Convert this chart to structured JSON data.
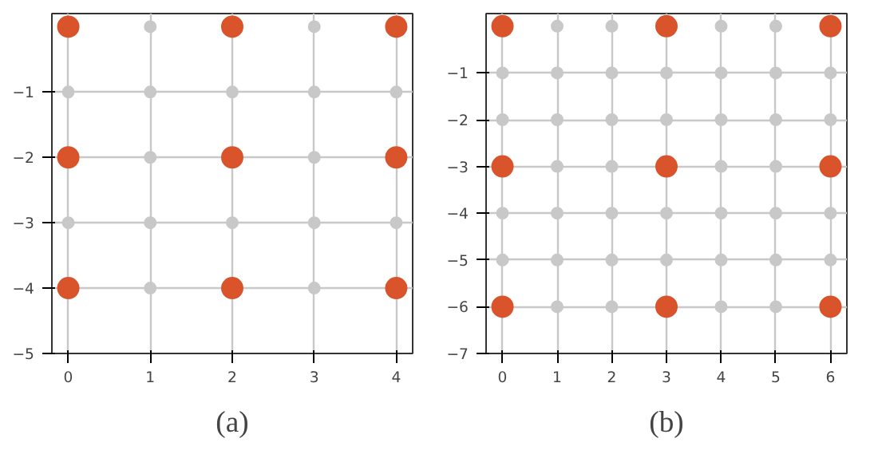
{
  "chart_data": [
    {
      "type": "scatter",
      "annotations": [
        "(a)"
      ],
      "xlim": [
        -0.2,
        4.2
      ],
      "ylim": [
        -5,
        0.2
      ],
      "xticks": [
        0,
        1,
        2,
        3,
        4
      ],
      "yticks": [
        -5,
        -4,
        -3,
        -2,
        -1
      ],
      "grid": true,
      "marker": "circle",
      "series": [
        {
          "color": "#c8c8c8",
          "x": [
            1,
            3,
            0,
            1,
            2,
            3,
            4,
            1,
            3,
            0,
            1,
            2,
            3,
            4,
            1,
            3
          ],
          "values": [
            0,
            0,
            -1,
            -1,
            -1,
            -1,
            -1,
            -2,
            -2,
            -3,
            -3,
            -3,
            -3,
            -3,
            -4,
            -4
          ]
        },
        {
          "color": "#d9532b",
          "x": [
            0,
            2,
            4,
            0,
            2,
            4,
            0,
            2,
            4
          ],
          "values": [
            0,
            0,
            0,
            -2,
            -2,
            -2,
            -4,
            -4,
            -4
          ]
        }
      ]
    },
    {
      "type": "scatter",
      "annotations": [
        "(b)"
      ],
      "xlim": [
        -0.3,
        6.3
      ],
      "ylim": [
        -7,
        0.27
      ],
      "xticks": [
        0,
        1,
        2,
        3,
        4,
        5,
        6
      ],
      "yticks": [
        -7,
        -6,
        -5,
        -4,
        -3,
        -2,
        -1
      ],
      "grid": true,
      "marker": "circle",
      "series": [
        {
          "color": "#c8c8c8",
          "x": [
            1,
            2,
            4,
            5,
            0,
            1,
            2,
            3,
            4,
            5,
            6,
            0,
            1,
            2,
            3,
            4,
            5,
            6,
            1,
            2,
            4,
            5,
            0,
            1,
            2,
            3,
            4,
            5,
            6,
            0,
            1,
            2,
            3,
            4,
            5,
            6,
            1,
            2,
            4,
            5
          ],
          "values": [
            0,
            0,
            0,
            0,
            -1,
            -1,
            -1,
            -1,
            -1,
            -1,
            -1,
            -2,
            -2,
            -2,
            -2,
            -2,
            -2,
            -2,
            -3,
            -3,
            -3,
            -3,
            -4,
            -4,
            -4,
            -4,
            -4,
            -4,
            -4,
            -5,
            -5,
            -5,
            -5,
            -5,
            -5,
            -5,
            -6,
            -6,
            -6,
            -6
          ]
        },
        {
          "color": "#d9532b",
          "x": [
            0,
            3,
            6,
            0,
            3,
            6,
            0,
            3,
            6
          ],
          "values": [
            0,
            0,
            0,
            -3,
            -3,
            -3,
            -6,
            -6,
            -6
          ]
        }
      ]
    }
  ]
}
